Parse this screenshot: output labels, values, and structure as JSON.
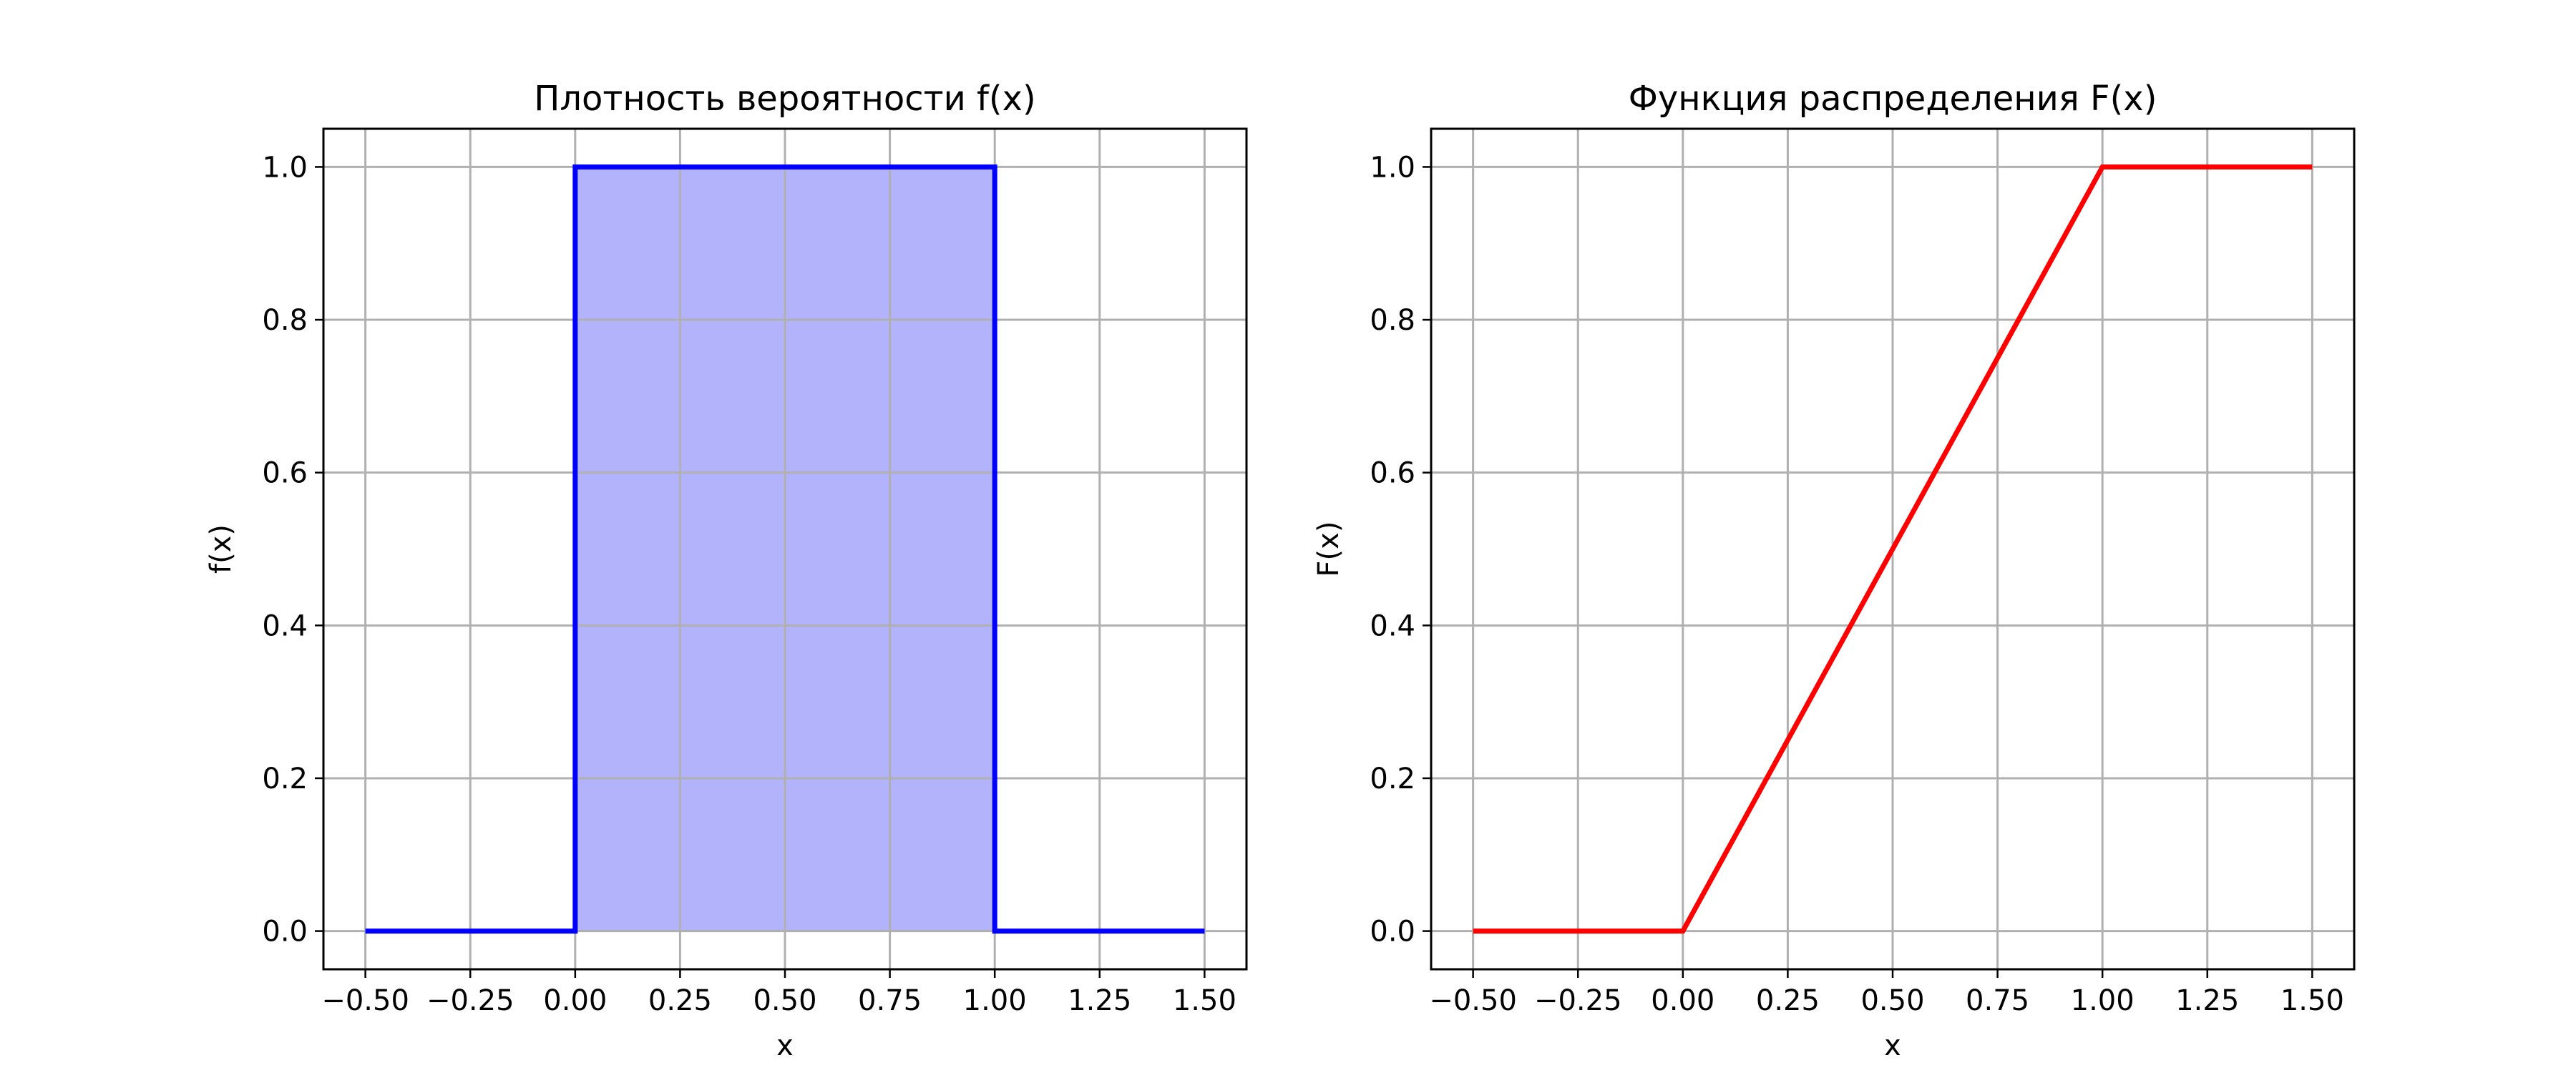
{
  "chart_data": [
    {
      "type": "area",
      "title": "Плотность вероятности f(x)",
      "xlabel": "x",
      "ylabel": "f(x)",
      "xlim": [
        -0.6,
        1.6
      ],
      "ylim": [
        -0.05,
        1.05
      ],
      "x_ticks": [
        -0.5,
        -0.25,
        0.0,
        0.25,
        0.5,
        0.75,
        1.0,
        1.25,
        1.5
      ],
      "x_tick_labels": [
        "−0.50",
        "−0.25",
        "0.00",
        "0.25",
        "0.50",
        "0.75",
        "1.00",
        "1.25",
        "1.50"
      ],
      "y_ticks": [
        0.0,
        0.2,
        0.4,
        0.6,
        0.8,
        1.0
      ],
      "y_tick_labels": [
        "0.0",
        "0.2",
        "0.4",
        "0.6",
        "0.8",
        "1.0"
      ],
      "grid": true,
      "series": [
        {
          "x": [
            -0.5,
            0.0,
            0.0,
            1.0,
            1.0,
            1.5
          ],
          "y": [
            0.0,
            0.0,
            1.0,
            1.0,
            0.0,
            0.0
          ],
          "color": "#0000ff",
          "fill_color": "#b3b3fb",
          "fill_x": [
            0.0,
            1.0
          ]
        }
      ]
    },
    {
      "type": "line",
      "title": "Функция распределения F(x)",
      "xlabel": "x",
      "ylabel": "F(x)",
      "xlim": [
        -0.6,
        1.6
      ],
      "ylim": [
        -0.05,
        1.05
      ],
      "x_ticks": [
        -0.5,
        -0.25,
        0.0,
        0.25,
        0.5,
        0.75,
        1.0,
        1.25,
        1.5
      ],
      "x_tick_labels": [
        "−0.50",
        "−0.25",
        "0.00",
        "0.25",
        "0.50",
        "0.75",
        "1.00",
        "1.25",
        "1.50"
      ],
      "y_ticks": [
        0.0,
        0.2,
        0.4,
        0.6,
        0.8,
        1.0
      ],
      "y_tick_labels": [
        "0.0",
        "0.2",
        "0.4",
        "0.6",
        "0.8",
        "1.0"
      ],
      "grid": true,
      "series": [
        {
          "x": [
            -0.5,
            0.0,
            1.0,
            1.5
          ],
          "y": [
            0.0,
            0.0,
            1.0,
            1.0
          ],
          "color": "#ff0000"
        }
      ]
    }
  ]
}
